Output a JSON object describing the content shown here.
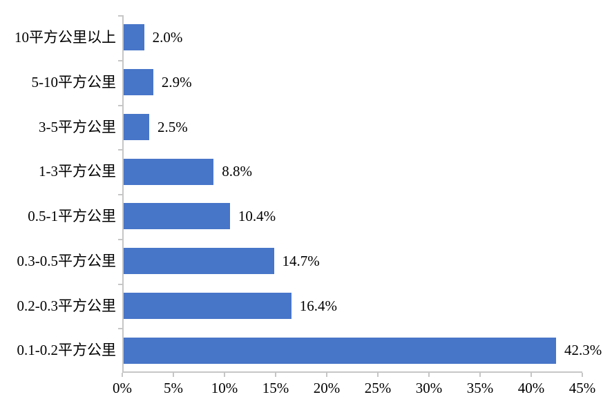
{
  "chart_data": {
    "type": "bar",
    "orientation": "horizontal",
    "title": "",
    "xlabel": "",
    "ylabel": "",
    "categories": [
      "10平方公里以上",
      "5-10平方公里",
      "3-5平方公里",
      "1-3平方公里",
      "0.5-1平方公里",
      "0.3-0.5平方公里",
      "0.2-0.3平方公里",
      "0.1-0.2平方公里"
    ],
    "values": [
      2.0,
      2.9,
      2.5,
      8.8,
      10.4,
      14.7,
      16.4,
      42.3
    ],
    "data_labels": [
      "2.0%",
      "2.9%",
      "2.5%",
      "8.8%",
      "10.4%",
      "14.7%",
      "16.4%",
      "42.3%"
    ],
    "x_tick_labels": [
      "0%",
      "5%",
      "10%",
      "15%",
      "20%",
      "25%",
      "30%",
      "35%",
      "40%",
      "45%"
    ],
    "xlim": [
      0,
      45
    ],
    "x_tick_step": 5,
    "grid": false,
    "legend": false,
    "bar_color": "#4775c8",
    "axis_color": "#c6c6c6",
    "text_color": "#000000"
  },
  "layout_hints": {
    "value_label_gap_note": "data labels shown to the right of each bar",
    "category_axis_note": "categories listed top (10平方公里以上) to bottom (0.1-0.2平方公里)"
  }
}
